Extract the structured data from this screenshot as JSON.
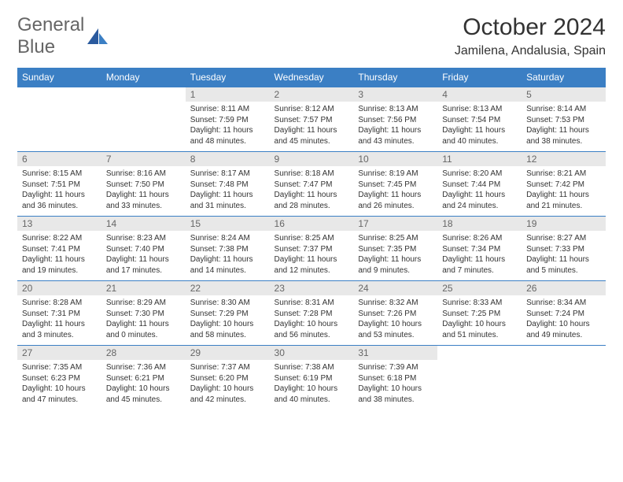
{
  "logo": {
    "word1": "General",
    "word2": "Blue"
  },
  "title": "October 2024",
  "location": "Jamilena, Andalusia, Spain",
  "dayHeaders": [
    "Sunday",
    "Monday",
    "Tuesday",
    "Wednesday",
    "Thursday",
    "Friday",
    "Saturday"
  ],
  "colors": {
    "headerBg": "#3b7fc4",
    "headerText": "#ffffff",
    "dayNumBg": "#e8e8e8",
    "rowBorder": "#3b7fc4"
  },
  "weeks": [
    [
      {
        "empty": true
      },
      {
        "empty": true
      },
      {
        "n": "1",
        "sunrise": "8:11 AM",
        "sunset": "7:59 PM",
        "daylight": "11 hours and 48 minutes."
      },
      {
        "n": "2",
        "sunrise": "8:12 AM",
        "sunset": "7:57 PM",
        "daylight": "11 hours and 45 minutes."
      },
      {
        "n": "3",
        "sunrise": "8:13 AM",
        "sunset": "7:56 PM",
        "daylight": "11 hours and 43 minutes."
      },
      {
        "n": "4",
        "sunrise": "8:13 AM",
        "sunset": "7:54 PM",
        "daylight": "11 hours and 40 minutes."
      },
      {
        "n": "5",
        "sunrise": "8:14 AM",
        "sunset": "7:53 PM",
        "daylight": "11 hours and 38 minutes."
      }
    ],
    [
      {
        "n": "6",
        "sunrise": "8:15 AM",
        "sunset": "7:51 PM",
        "daylight": "11 hours and 36 minutes."
      },
      {
        "n": "7",
        "sunrise": "8:16 AM",
        "sunset": "7:50 PM",
        "daylight": "11 hours and 33 minutes."
      },
      {
        "n": "8",
        "sunrise": "8:17 AM",
        "sunset": "7:48 PM",
        "daylight": "11 hours and 31 minutes."
      },
      {
        "n": "9",
        "sunrise": "8:18 AM",
        "sunset": "7:47 PM",
        "daylight": "11 hours and 28 minutes."
      },
      {
        "n": "10",
        "sunrise": "8:19 AM",
        "sunset": "7:45 PM",
        "daylight": "11 hours and 26 minutes."
      },
      {
        "n": "11",
        "sunrise": "8:20 AM",
        "sunset": "7:44 PM",
        "daylight": "11 hours and 24 minutes."
      },
      {
        "n": "12",
        "sunrise": "8:21 AM",
        "sunset": "7:42 PM",
        "daylight": "11 hours and 21 minutes."
      }
    ],
    [
      {
        "n": "13",
        "sunrise": "8:22 AM",
        "sunset": "7:41 PM",
        "daylight": "11 hours and 19 minutes."
      },
      {
        "n": "14",
        "sunrise": "8:23 AM",
        "sunset": "7:40 PM",
        "daylight": "11 hours and 17 minutes."
      },
      {
        "n": "15",
        "sunrise": "8:24 AM",
        "sunset": "7:38 PM",
        "daylight": "11 hours and 14 minutes."
      },
      {
        "n": "16",
        "sunrise": "8:25 AM",
        "sunset": "7:37 PM",
        "daylight": "11 hours and 12 minutes."
      },
      {
        "n": "17",
        "sunrise": "8:25 AM",
        "sunset": "7:35 PM",
        "daylight": "11 hours and 9 minutes."
      },
      {
        "n": "18",
        "sunrise": "8:26 AM",
        "sunset": "7:34 PM",
        "daylight": "11 hours and 7 minutes."
      },
      {
        "n": "19",
        "sunrise": "8:27 AM",
        "sunset": "7:33 PM",
        "daylight": "11 hours and 5 minutes."
      }
    ],
    [
      {
        "n": "20",
        "sunrise": "8:28 AM",
        "sunset": "7:31 PM",
        "daylight": "11 hours and 3 minutes."
      },
      {
        "n": "21",
        "sunrise": "8:29 AM",
        "sunset": "7:30 PM",
        "daylight": "11 hours and 0 minutes."
      },
      {
        "n": "22",
        "sunrise": "8:30 AM",
        "sunset": "7:29 PM",
        "daylight": "10 hours and 58 minutes."
      },
      {
        "n": "23",
        "sunrise": "8:31 AM",
        "sunset": "7:28 PM",
        "daylight": "10 hours and 56 minutes."
      },
      {
        "n": "24",
        "sunrise": "8:32 AM",
        "sunset": "7:26 PM",
        "daylight": "10 hours and 53 minutes."
      },
      {
        "n": "25",
        "sunrise": "8:33 AM",
        "sunset": "7:25 PM",
        "daylight": "10 hours and 51 minutes."
      },
      {
        "n": "26",
        "sunrise": "8:34 AM",
        "sunset": "7:24 PM",
        "daylight": "10 hours and 49 minutes."
      }
    ],
    [
      {
        "n": "27",
        "sunrise": "7:35 AM",
        "sunset": "6:23 PM",
        "daylight": "10 hours and 47 minutes."
      },
      {
        "n": "28",
        "sunrise": "7:36 AM",
        "sunset": "6:21 PM",
        "daylight": "10 hours and 45 minutes."
      },
      {
        "n": "29",
        "sunrise": "7:37 AM",
        "sunset": "6:20 PM",
        "daylight": "10 hours and 42 minutes."
      },
      {
        "n": "30",
        "sunrise": "7:38 AM",
        "sunset": "6:19 PM",
        "daylight": "10 hours and 40 minutes."
      },
      {
        "n": "31",
        "sunrise": "7:39 AM",
        "sunset": "6:18 PM",
        "daylight": "10 hours and 38 minutes."
      },
      {
        "empty": true
      },
      {
        "empty": true
      }
    ]
  ]
}
